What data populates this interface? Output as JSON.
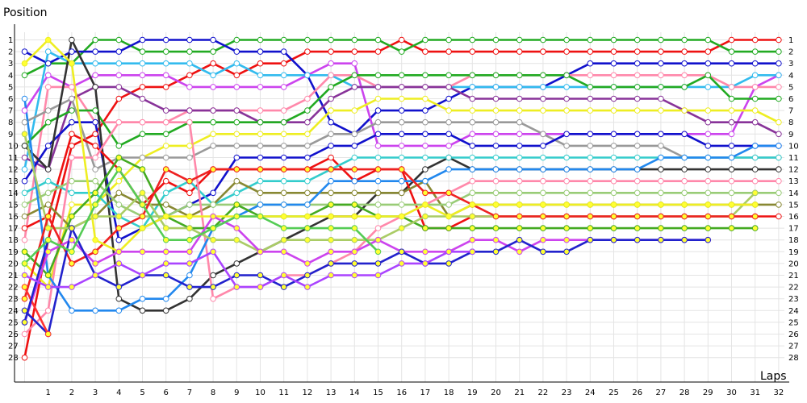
{
  "chart_data": {
    "type": "line",
    "title": "",
    "xlabel": "Laps",
    "ylabel": "Position",
    "x": [
      0,
      1,
      2,
      3,
      4,
      5,
      6,
      7,
      8,
      9,
      10,
      11,
      12,
      13,
      14,
      15,
      16,
      17,
      18,
      19,
      20,
      21,
      22,
      23,
      24,
      25,
      26,
      27,
      28,
      29,
      30,
      31,
      32
    ],
    "x_tick_labels": [
      "1",
      "2",
      "3",
      "4",
      "5",
      "6",
      "7",
      "8",
      "9",
      "10",
      "11",
      "12",
      "13",
      "14",
      "15",
      "16",
      "17",
      "18",
      "19",
      "20",
      "21",
      "22",
      "23",
      "24",
      "25",
      "26",
      "27",
      "28",
      "29",
      "30",
      "31",
      "32"
    ],
    "y_tick_labels": [
      "1",
      "2",
      "3",
      "4",
      "5",
      "6",
      "7",
      "8",
      "9",
      "10",
      "11",
      "12",
      "13",
      "14",
      "15",
      "16",
      "17",
      "18",
      "19",
      "20",
      "21",
      "22",
      "23",
      "24",
      "25",
      "26",
      "27",
      "28"
    ],
    "ylim": [
      1,
      28
    ],
    "y_inverted": true,
    "grid": true,
    "series": [
      {
        "color": "#ee1111",
        "marker": "open",
        "positions": [
          28,
          18,
          10,
          9,
          6,
          5,
          5,
          4,
          3,
          4,
          3,
          3,
          2,
          2,
          2,
          2,
          1,
          2,
          2,
          2,
          2,
          2,
          2,
          2,
          2,
          2,
          2,
          2,
          2,
          2,
          1,
          1,
          1
        ]
      },
      {
        "color": "#22aa22",
        "marker": "open",
        "positions": [
          4,
          3,
          3,
          1,
          1,
          2,
          2,
          2,
          2,
          1,
          1,
          1,
          1,
          1,
          1,
          1,
          2,
          1,
          1,
          1,
          1,
          1,
          1,
          1,
          1,
          1,
          1,
          1,
          1,
          1,
          2,
          2,
          2
        ]
      },
      {
        "color": "#1111cc",
        "marker": "open",
        "positions": [
          2,
          3,
          2,
          2,
          2,
          1,
          1,
          1,
          1,
          2,
          2,
          2,
          4,
          8,
          9,
          7,
          7,
          7,
          6,
          5,
          5,
          5,
          5,
          4,
          3,
          3,
          3,
          3,
          3,
          3,
          3,
          3,
          3
        ]
      },
      {
        "color": "#cc44ee",
        "marker": "open",
        "positions": [
          7,
          4,
          5,
          4,
          4,
          4,
          4,
          5,
          5,
          5,
          5,
          5,
          4,
          3,
          3,
          10,
          10,
          10,
          10,
          9,
          9,
          9,
          9,
          9,
          9,
          9,
          9,
          9,
          9,
          9,
          9,
          5,
          4
        ]
      },
      {
        "color": "#33bbee",
        "marker": "open",
        "positions": [
          12,
          2,
          3,
          3,
          3,
          3,
          3,
          3,
          4,
          3,
          4,
          4,
          4,
          4,
          5,
          5,
          5,
          5,
          5,
          5,
          5,
          5,
          5,
          5,
          5,
          5,
          5,
          5,
          5,
          5,
          5,
          4,
          4
        ]
      },
      {
        "color": "#ff88aa",
        "marker": "open",
        "positions": [
          18,
          5,
          5,
          8,
          8,
          8,
          8,
          7,
          7,
          7,
          7,
          7,
          6,
          4,
          4,
          5,
          5,
          5,
          5,
          4,
          4,
          4,
          4,
          4,
          4,
          4,
          4,
          4,
          4,
          4,
          5,
          5,
          5
        ]
      },
      {
        "color": "#883399",
        "marker": "open",
        "positions": [
          11,
          12,
          6,
          5,
          5,
          6,
          7,
          7,
          7,
          7,
          8,
          8,
          8,
          6,
          5,
          5,
          5,
          5,
          5,
          6,
          6,
          6,
          6,
          6,
          6,
          6,
          6,
          6,
          7,
          8,
          8,
          8,
          9
        ]
      },
      {
        "color": "#22aa22",
        "marker": "open",
        "positions": [
          10,
          8,
          7,
          7,
          10,
          9,
          9,
          8,
          8,
          8,
          8,
          8,
          7,
          5,
          4,
          4,
          4,
          4,
          4,
          4,
          4,
          4,
          4,
          4,
          5,
          5,
          5,
          5,
          5,
          4,
          6,
          6,
          6
        ]
      },
      {
        "color": "#eeee22",
        "marker": "open",
        "positions": [
          20,
          22,
          15,
          15,
          13,
          11,
          10,
          10,
          9,
          9,
          9,
          9,
          9,
          7,
          7,
          6,
          6,
          6,
          7,
          7,
          7,
          7,
          7,
          7,
          7,
          7,
          7,
          7,
          7,
          7,
          7,
          7,
          8
        ]
      },
      {
        "color": "#999999",
        "marker": "open",
        "positions": [
          8,
          7,
          6,
          12,
          11,
          11,
          11,
          11,
          10,
          10,
          10,
          10,
          10,
          9,
          9,
          8,
          8,
          8,
          8,
          8,
          8,
          8,
          9,
          10,
          10,
          10,
          10,
          10,
          11,
          11,
          11,
          11,
          11
        ]
      },
      {
        "color": "#1111cc",
        "marker": "open",
        "positions": [
          13,
          10,
          8,
          8,
          18,
          17,
          16,
          15,
          14,
          11,
          11,
          11,
          11,
          10,
          10,
          9,
          9,
          9,
          9,
          10,
          10,
          10,
          10,
          9,
          9,
          9,
          9,
          9,
          9,
          10,
          10,
          10,
          10
        ]
      },
      {
        "color": "#333333",
        "marker": "open",
        "positions": [
          10,
          12,
          1,
          5,
          23,
          24,
          24,
          23,
          21,
          20,
          19,
          18,
          17,
          16,
          16,
          14,
          14,
          12,
          11,
          12,
          12,
          12,
          12,
          12,
          12,
          12,
          12,
          12,
          12,
          12,
          12,
          12,
          12
        ]
      },
      {
        "color": "#ee1111",
        "marker": "open",
        "positions": [
          17,
          16,
          9,
          10,
          12,
          15,
          13,
          14,
          12,
          12,
          12,
          12,
          12,
          11,
          13,
          12,
          12,
          17,
          17,
          16,
          16,
          16,
          16,
          16,
          16,
          16,
          16,
          16,
          16,
          16,
          16,
          16,
          16
        ]
      },
      {
        "color": "#33cccc",
        "marker": "open",
        "positions": [
          14,
          13,
          14,
          14,
          16,
          17,
          14,
          13,
          15,
          14,
          13,
          13,
          13,
          12,
          11,
          11,
          11,
          11,
          11,
          11,
          11,
          11,
          11,
          11,
          11,
          11,
          11,
          11,
          11,
          11,
          11,
          11,
          11
        ]
      },
      {
        "color": "#888833",
        "marker": "open",
        "positions": [
          16,
          15,
          17,
          16,
          14,
          15,
          15,
          16,
          15,
          13,
          14,
          14,
          14,
          14,
          14,
          14,
          14,
          13,
          16,
          15,
          15,
          15,
          15,
          15,
          15,
          15,
          15,
          15,
          15,
          15,
          15,
          15,
          15
        ]
      },
      {
        "color": "#99cc77",
        "marker": "open",
        "positions": [
          15,
          14,
          13,
          13,
          15,
          16,
          16,
          15,
          15,
          15,
          15,
          15,
          15,
          15,
          15,
          15,
          15,
          15,
          15,
          14,
          14,
          14,
          14,
          14,
          14,
          14,
          14,
          14,
          14,
          14,
          14,
          14,
          14
        ]
      },
      {
        "color": "#ff88aa",
        "marker": "open",
        "positions": [
          26,
          24,
          11,
          11,
          8,
          8,
          8,
          8,
          23,
          22,
          22,
          21,
          21,
          20,
          19,
          17,
          16,
          15,
          14,
          13,
          13,
          13,
          13,
          13,
          13,
          13,
          13,
          13,
          13,
          13,
          13,
          13,
          13
        ]
      },
      {
        "color": "#2288ee",
        "marker": "open",
        "positions": [
          6,
          21,
          24,
          24,
          24,
          23,
          23,
          21,
          17,
          16,
          15,
          15,
          15,
          13,
          13,
          13,
          13,
          13,
          12,
          12,
          12,
          12,
          12,
          12,
          12,
          12,
          12,
          11,
          11,
          11,
          11,
          10,
          10
        ]
      },
      {
        "color": "#44aa22",
        "marker": "filled",
        "positions": [
          19,
          21,
          16,
          14,
          11,
          12,
          16,
          17,
          17,
          15,
          16,
          16,
          16,
          15,
          15,
          16,
          16,
          17,
          17,
          17,
          17,
          17,
          17,
          17,
          17,
          17,
          17,
          17,
          17,
          17,
          17,
          17
        ]
      },
      {
        "color": "#aacc66",
        "marker": "filled",
        "positions": [
          9,
          17,
          17,
          16,
          16,
          14,
          17,
          17,
          18,
          18,
          19,
          18,
          18,
          18,
          18,
          18,
          17,
          16,
          16,
          16,
          16,
          16,
          16,
          16,
          16,
          16,
          16,
          16,
          16,
          16,
          16,
          14
        ]
      },
      {
        "color": "#ee2222",
        "marker": "filled",
        "positions": [
          23,
          16,
          20,
          19,
          17,
          16,
          12,
          13,
          12,
          12,
          12,
          12,
          12,
          12,
          12,
          12,
          12,
          14,
          14,
          15,
          16,
          16,
          16,
          16,
          16,
          16,
          16,
          16,
          16,
          16,
          16,
          16
        ]
      },
      {
        "color": "#eeee22",
        "marker": "filled",
        "positions": [
          3,
          1,
          3,
          18,
          19,
          17,
          16,
          16,
          16,
          16,
          16,
          16,
          16,
          16,
          16,
          16,
          16,
          15,
          16,
          15,
          15,
          15,
          15,
          15,
          15,
          15,
          15,
          15,
          15,
          15,
          15,
          15
        ]
      },
      {
        "color": "#cc44ee",
        "marker": "filled",
        "positions": [
          25,
          19,
          18,
          20,
          19,
          19,
          19,
          19,
          16,
          17,
          19,
          19,
          20,
          19,
          19,
          18,
          19,
          19,
          19,
          18,
          18,
          19,
          18,
          18,
          18,
          18,
          18,
          18,
          18,
          18
        ]
      },
      {
        "color": "#2222cc",
        "marker": "filled",
        "positions": [
          24,
          26,
          17,
          21,
          22,
          21,
          21,
          22,
          22,
          21,
          21,
          22,
          21,
          20,
          20,
          20,
          19,
          20,
          20,
          19,
          19,
          18,
          19,
          19,
          18,
          18,
          18,
          18,
          18,
          18
        ]
      },
      {
        "color": "#ff3333",
        "marker": "filled",
        "positions": [
          22,
          26
        ]
      },
      {
        "color": "#2222cc",
        "marker": "filled",
        "positions": [
          25,
          18
        ]
      },
      {
        "color": "#aa44ff",
        "marker": "filled",
        "positions": [
          21,
          22,
          22,
          21,
          20,
          21,
          20,
          20,
          19,
          22,
          22,
          21,
          22,
          21,
          21,
          21,
          20,
          20,
          19,
          19
        ]
      },
      {
        "color": "#55cc55",
        "marker": "filled",
        "positions": [
          20,
          18,
          19,
          15,
          12,
          15,
          18,
          18,
          17,
          16,
          16,
          17,
          17,
          17,
          17,
          19
        ]
      }
    ]
  }
}
